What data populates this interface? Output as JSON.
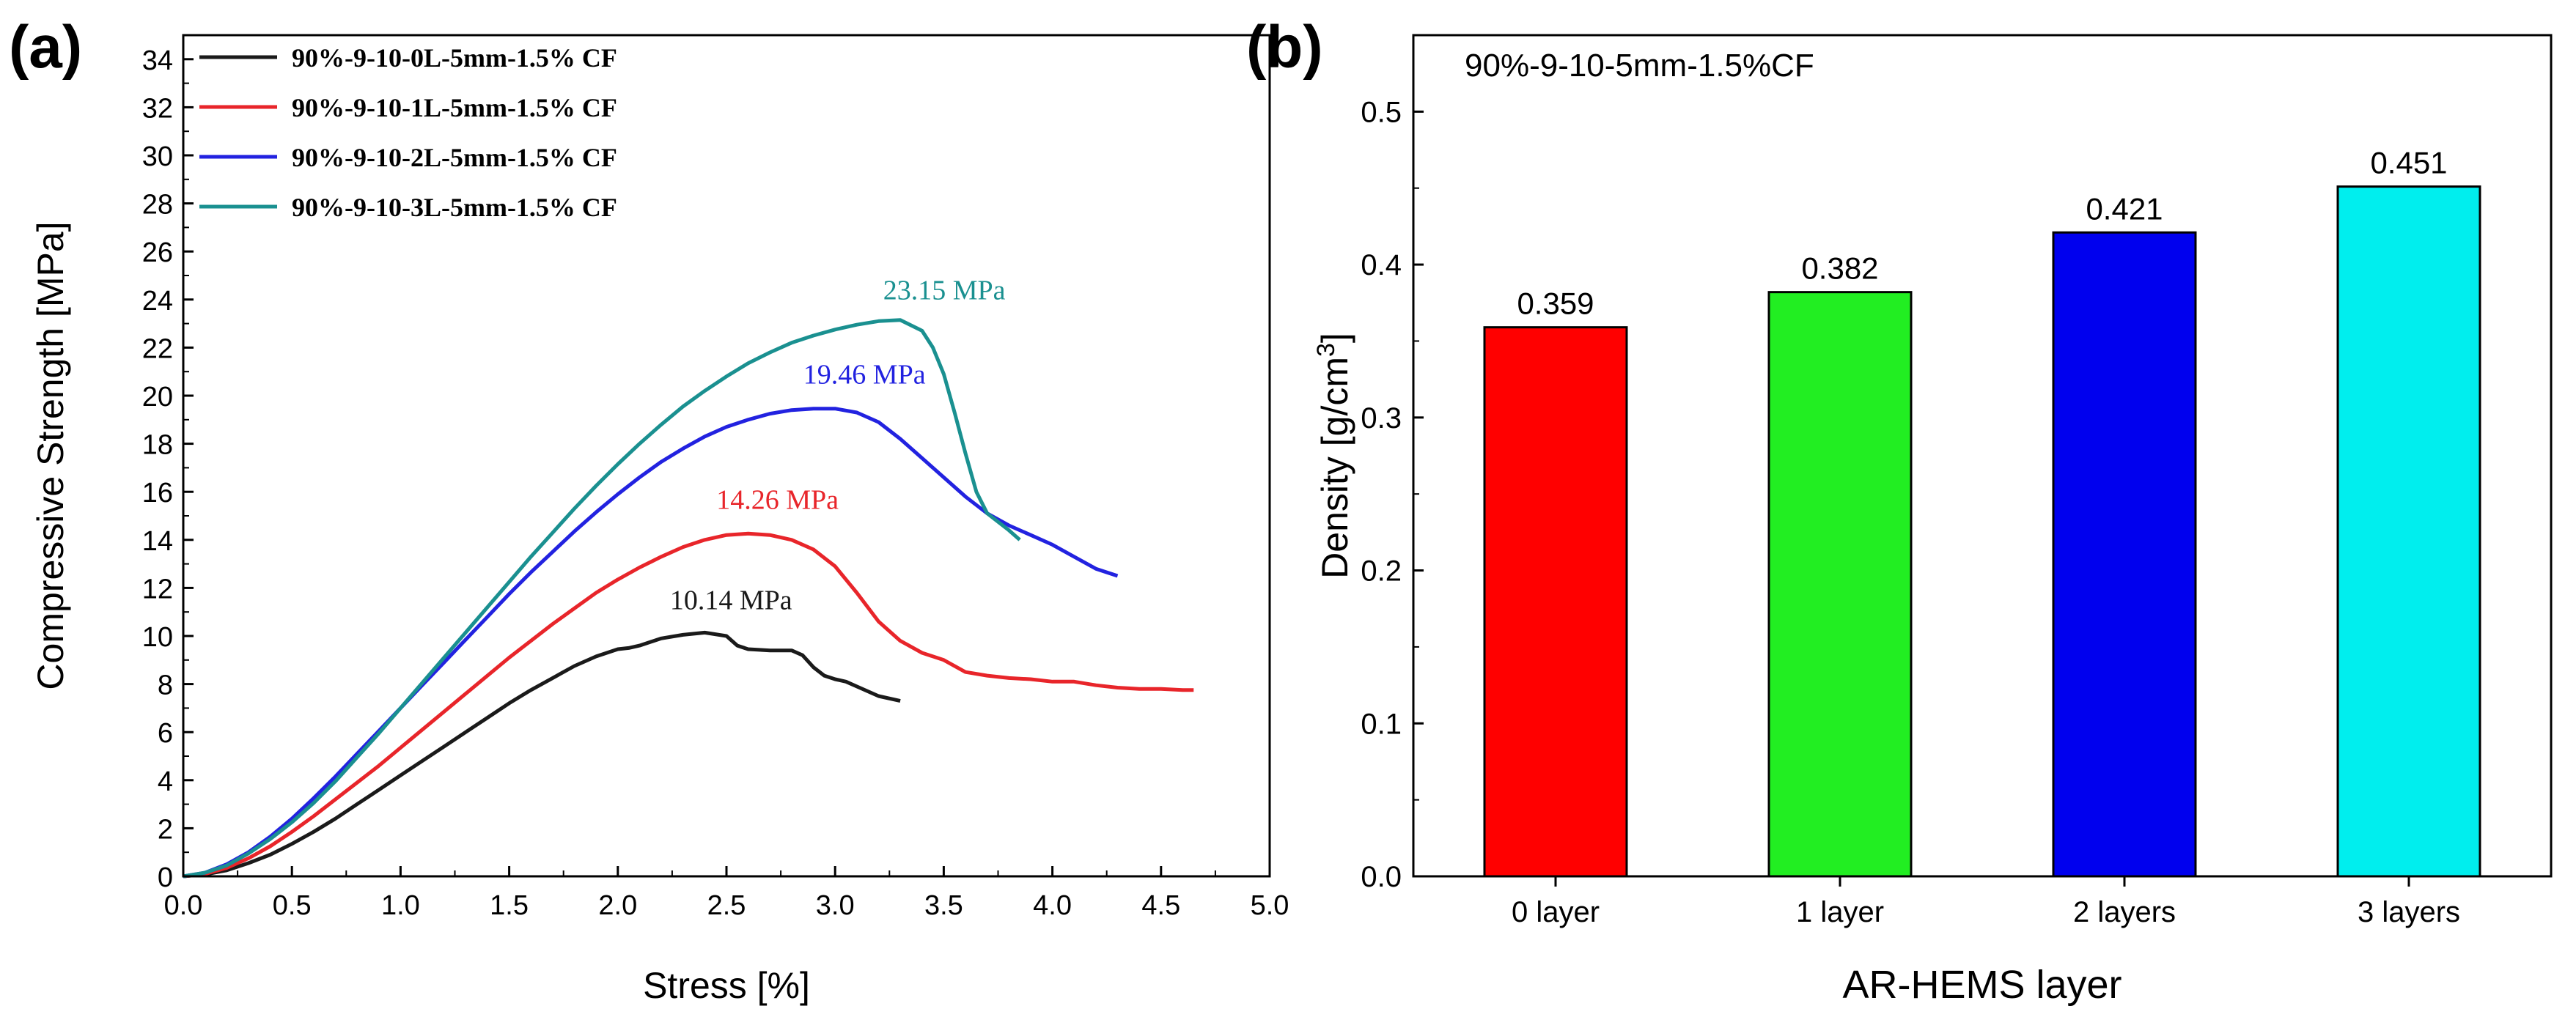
{
  "chart_data": [
    {
      "panel": "(a)",
      "type": "line",
      "xlabel": "Stress [%]",
      "ylabel": "Compressive Strength [MPa]",
      "xlim": [
        0,
        5
      ],
      "ylim": [
        0,
        35
      ],
      "xticks": [
        "0.0",
        "0.5",
        "1.0",
        "1.5",
        "2.0",
        "2.5",
        "3.0",
        "3.5",
        "4.0",
        "4.5",
        "5.0"
      ],
      "yticks": [
        "0",
        "2",
        "4",
        "6",
        "8",
        "10",
        "12",
        "14",
        "16",
        "18",
        "20",
        "22",
        "24",
        "26",
        "28",
        "30",
        "32",
        "34"
      ],
      "legend_position": "top-left",
      "series": [
        {
          "name": "90%-9-10-0L-5mm-1.5% CF",
          "color": "#1a1a1a",
          "peak_label": "10.14 MPa",
          "peak": [
            2.42,
            10.14
          ],
          "points": [
            [
              0,
              0
            ],
            [
              0.1,
              0.08
            ],
            [
              0.2,
              0.25
            ],
            [
              0.3,
              0.55
            ],
            [
              0.4,
              0.9
            ],
            [
              0.5,
              1.35
            ],
            [
              0.6,
              1.85
            ],
            [
              0.7,
              2.4
            ],
            [
              0.8,
              3.0
            ],
            [
              0.9,
              3.6
            ],
            [
              1.0,
              4.2
            ],
            [
              1.1,
              4.8
            ],
            [
              1.2,
              5.4
            ],
            [
              1.3,
              6.0
            ],
            [
              1.4,
              6.6
            ],
            [
              1.5,
              7.2
            ],
            [
              1.6,
              7.75
            ],
            [
              1.7,
              8.25
            ],
            [
              1.8,
              8.75
            ],
            [
              1.9,
              9.15
            ],
            [
              2.0,
              9.45
            ],
            [
              2.05,
              9.5
            ],
            [
              2.1,
              9.6
            ],
            [
              2.2,
              9.9
            ],
            [
              2.3,
              10.05
            ],
            [
              2.4,
              10.14
            ],
            [
              2.5,
              10.0
            ],
            [
              2.55,
              9.6
            ],
            [
              2.6,
              9.45
            ],
            [
              2.7,
              9.4
            ],
            [
              2.8,
              9.4
            ],
            [
              2.85,
              9.2
            ],
            [
              2.9,
              8.7
            ],
            [
              2.95,
              8.35
            ],
            [
              3.0,
              8.2
            ],
            [
              3.05,
              8.1
            ],
            [
              3.1,
              7.9
            ],
            [
              3.2,
              7.5
            ],
            [
              3.3,
              7.3
            ]
          ]
        },
        {
          "name": "90%-9-10-1L-5mm-1.5% CF",
          "color": "#e8252a",
          "peak_label": "14.26 MPa",
          "peak": [
            2.6,
            14.26
          ],
          "points": [
            [
              0,
              0
            ],
            [
              0.1,
              0.1
            ],
            [
              0.2,
              0.35
            ],
            [
              0.3,
              0.75
            ],
            [
              0.4,
              1.25
            ],
            [
              0.5,
              1.85
            ],
            [
              0.6,
              2.5
            ],
            [
              0.7,
              3.2
            ],
            [
              0.8,
              3.9
            ],
            [
              0.9,
              4.6
            ],
            [
              1.0,
              5.35
            ],
            [
              1.1,
              6.1
            ],
            [
              1.2,
              6.85
            ],
            [
              1.3,
              7.6
            ],
            [
              1.4,
              8.35
            ],
            [
              1.5,
              9.1
            ],
            [
              1.6,
              9.8
            ],
            [
              1.7,
              10.5
            ],
            [
              1.8,
              11.15
            ],
            [
              1.9,
              11.8
            ],
            [
              2.0,
              12.35
            ],
            [
              2.1,
              12.85
            ],
            [
              2.2,
              13.3
            ],
            [
              2.3,
              13.7
            ],
            [
              2.4,
              14.0
            ],
            [
              2.5,
              14.2
            ],
            [
              2.6,
              14.26
            ],
            [
              2.7,
              14.2
            ],
            [
              2.8,
              14.0
            ],
            [
              2.9,
              13.6
            ],
            [
              3.0,
              12.9
            ],
            [
              3.1,
              11.8
            ],
            [
              3.2,
              10.6
            ],
            [
              3.3,
              9.8
            ],
            [
              3.4,
              9.3
            ],
            [
              3.5,
              9.0
            ],
            [
              3.6,
              8.5
            ],
            [
              3.7,
              8.35
            ],
            [
              3.8,
              8.25
            ],
            [
              3.9,
              8.2
            ],
            [
              4.0,
              8.1
            ],
            [
              4.1,
              8.1
            ],
            [
              4.2,
              7.95
            ],
            [
              4.3,
              7.85
            ],
            [
              4.4,
              7.8
            ],
            [
              4.5,
              7.8
            ],
            [
              4.6,
              7.75
            ],
            [
              4.65,
              7.75
            ]
          ]
        },
        {
          "name": "90%-9-10-2L-5mm-1.5% CF",
          "color": "#2222e0",
          "peak_label": "19.46 MPa",
          "peak": [
            3.0,
            19.46
          ],
          "points": [
            [
              0,
              0
            ],
            [
              0.1,
              0.15
            ],
            [
              0.2,
              0.5
            ],
            [
              0.3,
              1.0
            ],
            [
              0.4,
              1.65
            ],
            [
              0.5,
              2.4
            ],
            [
              0.6,
              3.25
            ],
            [
              0.7,
              4.15
            ],
            [
              0.8,
              5.1
            ],
            [
              0.9,
              6.05
            ],
            [
              1.0,
              7.0
            ],
            [
              1.1,
              7.95
            ],
            [
              1.2,
              8.9
            ],
            [
              1.3,
              9.85
            ],
            [
              1.4,
              10.8
            ],
            [
              1.5,
              11.75
            ],
            [
              1.6,
              12.65
            ],
            [
              1.7,
              13.5
            ],
            [
              1.8,
              14.35
            ],
            [
              1.9,
              15.15
            ],
            [
              2.0,
              15.9
            ],
            [
              2.1,
              16.6
            ],
            [
              2.2,
              17.25
            ],
            [
              2.3,
              17.8
            ],
            [
              2.4,
              18.3
            ],
            [
              2.5,
              18.7
            ],
            [
              2.6,
              19.0
            ],
            [
              2.7,
              19.25
            ],
            [
              2.8,
              19.4
            ],
            [
              2.9,
              19.46
            ],
            [
              3.0,
              19.46
            ],
            [
              3.1,
              19.3
            ],
            [
              3.2,
              18.9
            ],
            [
              3.3,
              18.2
            ],
            [
              3.4,
              17.4
            ],
            [
              3.5,
              16.6
            ],
            [
              3.6,
              15.8
            ],
            [
              3.7,
              15.1
            ],
            [
              3.8,
              14.6
            ],
            [
              3.9,
              14.2
            ],
            [
              4.0,
              13.8
            ],
            [
              4.1,
              13.3
            ],
            [
              4.2,
              12.8
            ],
            [
              4.3,
              12.5
            ]
          ]
        },
        {
          "name": "90%-9-10-3L-5mm-1.5% CF",
          "color": "#1a9090",
          "peak_label": "23.15 MPa",
          "peak": [
            3.3,
            23.15
          ],
          "points": [
            [
              0,
              0
            ],
            [
              0.1,
              0.15
            ],
            [
              0.2,
              0.45
            ],
            [
              0.3,
              0.95
            ],
            [
              0.4,
              1.55
            ],
            [
              0.5,
              2.25
            ],
            [
              0.6,
              3.05
            ],
            [
              0.7,
              3.95
            ],
            [
              0.8,
              4.95
            ],
            [
              0.9,
              5.95
            ],
            [
              1.0,
              7.0
            ],
            [
              1.1,
              8.05
            ],
            [
              1.2,
              9.1
            ],
            [
              1.3,
              10.15
            ],
            [
              1.4,
              11.2
            ],
            [
              1.5,
              12.25
            ],
            [
              1.6,
              13.3
            ],
            [
              1.7,
              14.3
            ],
            [
              1.8,
              15.3
            ],
            [
              1.9,
              16.25
            ],
            [
              2.0,
              17.15
            ],
            [
              2.1,
              18.0
            ],
            [
              2.2,
              18.8
            ],
            [
              2.3,
              19.55
            ],
            [
              2.4,
              20.2
            ],
            [
              2.5,
              20.8
            ],
            [
              2.6,
              21.35
            ],
            [
              2.7,
              21.8
            ],
            [
              2.8,
              22.2
            ],
            [
              2.9,
              22.5
            ],
            [
              3.0,
              22.75
            ],
            [
              3.1,
              22.95
            ],
            [
              3.2,
              23.1
            ],
            [
              3.3,
              23.15
            ],
            [
              3.4,
              22.7
            ],
            [
              3.45,
              22.0
            ],
            [
              3.5,
              20.9
            ],
            [
              3.55,
              19.3
            ],
            [
              3.6,
              17.6
            ],
            [
              3.65,
              16.0
            ],
            [
              3.7,
              15.1
            ],
            [
              3.8,
              14.4
            ],
            [
              3.85,
              14.0
            ]
          ]
        }
      ]
    },
    {
      "panel": "(b)",
      "type": "bar",
      "title": "90%-9-10-5mm-1.5%CF",
      "xlabel": "AR-HEMS layer",
      "ylabel": "Density [g/cm3]",
      "ylim": [
        0,
        0.55
      ],
      "yticks": [
        "0.0",
        "0.1",
        "0.2",
        "0.3",
        "0.4",
        "0.5"
      ],
      "categories": [
        "0 layer",
        "1 layer",
        "2 layers",
        "3 layers"
      ],
      "values": [
        0.359,
        0.382,
        0.421,
        0.451
      ],
      "value_labels": [
        "0.359",
        "0.382",
        "0.421",
        "0.451"
      ],
      "colors": [
        "#ff0000",
        "#22ee22",
        "#0000ee",
        "#00eeee"
      ]
    }
  ]
}
